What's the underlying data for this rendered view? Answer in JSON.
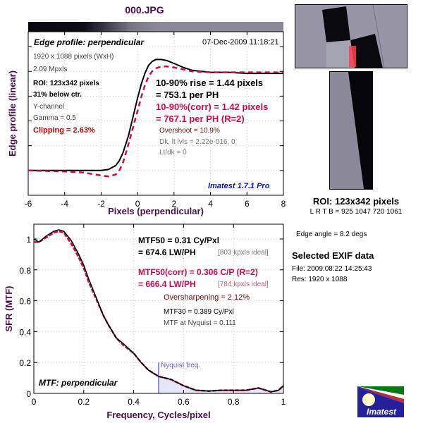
{
  "window_title": "000.JPG",
  "colors": {
    "title": "#4b0a50",
    "uncorrected": "#000000",
    "corrected": "#cc0a50",
    "clipping": "#c00000",
    "overshoot": "#6a0a0a",
    "watermark": "#0a14c8",
    "nyquist": "#8c8cdc",
    "nyquist_fill": "#e6e6fa"
  },
  "edge_panel": {
    "subtitle": "Edge profile: perpendicular",
    "timestamp": "07-Dec-2009 11:18:21",
    "info_lines": {
      "resolution": "1920 x 1088 pixels (WxH)",
      "mpxls": "2.09 Mpxls",
      "roi": "ROI: 123x342 pixels",
      "roi_pos": "31% below ctr.",
      "channel": "Y-channel",
      "gamma": "Gamma = 0.5",
      "clipping": "Clipping =   2.63%"
    },
    "results": {
      "rise": "10-90% rise = 1.44 pixels",
      "rise_ph": "= 753.1 per PH",
      "rise_corr": "10-90%(corr) = 1.42 pixels",
      "rise_corr_ph": "= 767.1 per PH  (R=2)",
      "overshoot": "Overshoot = 10.9%",
      "levels": "Dk, lt lvls = 2.22e-016, 0",
      "ltdk": "Lt/dk = 0"
    },
    "watermark": "Imatest 1.7.1 Pro"
  },
  "mtf_panel": {
    "subtitle": "MTF: perpendicular",
    "results": {
      "mtf50": "MTF50 = 0.31 Cy/Pxl",
      "mtf50_lw": "= 674.6 LW/PH",
      "mtf50_ideal": "[803 kpxls ideal]",
      "mtf50_corr": "MTF50(corr) = 0.306 C/P  (R=2)",
      "mtf50_corr_lw": "= 666.4 LW/PH",
      "mtf50_corr_ideal": "[784 kpxls ideal]",
      "oversharpening": "Oversharpening = 2.12%",
      "mtf30": "MTF30 = 0.389 Cy/Pxl",
      "nyquist_mtf": "MTF at Nyquist = 0.111"
    },
    "nyquist_label": "Nyquist freq."
  },
  "side_panel": {
    "roi_title": "ROI: 123x342 pixels",
    "roi_coords": "L R  T B = 925 1047  720 1061",
    "edge_angle": "Edge angle = 8.2 degs",
    "exif_title": "Selected EXIF data",
    "exif_file": "File:  2009:08:22 14:25:43",
    "exif_res": "Res:   1920 x 1088",
    "logo_text": "Imatest"
  },
  "chart_data": [
    {
      "type": "line",
      "title": "Edge profile: perpendicular",
      "xlabel": "Pixels (perpendicular)",
      "ylabel": "Edge profile (linear)",
      "xlim": [
        -6,
        8
      ],
      "x_ticks": [
        "-6",
        "-4",
        "-2",
        "0",
        "2",
        "4",
        "6",
        "8"
      ],
      "ylim": [
        -0.25,
        1.4
      ],
      "grid": true,
      "series": [
        {
          "name": "edge (uncorrected)",
          "style": "solid",
          "x": [
            -6,
            -4,
            -2,
            -1.6,
            -1.2,
            -1.0,
            -0.8,
            -0.5,
            -0.2,
            0,
            0.2,
            0.4,
            0.6,
            0.8,
            1.0,
            1.3,
            1.6,
            2.0,
            2.5,
            3.0,
            4.0,
            5.0,
            6.0,
            7.0,
            8.0
          ],
          "y": [
            0,
            0,
            0,
            0.01,
            0.05,
            0.1,
            0.18,
            0.35,
            0.58,
            0.73,
            0.87,
            0.98,
            1.06,
            1.1,
            1.12,
            1.12,
            1.11,
            1.08,
            1.04,
            1.01,
            0.99,
            0.99,
            0.98,
            0.98,
            0.98
          ]
        },
        {
          "name": "edge (corrected)",
          "style": "dashed",
          "x": [
            -6,
            -4,
            -3,
            -2,
            -1.6,
            -1.2,
            -1.0,
            -0.8,
            -0.6,
            -0.3,
            0,
            0.2,
            0.4,
            0.6,
            0.8,
            1.0,
            1.3,
            1.6,
            2.0,
            2.5,
            3.0,
            4.0,
            5.0,
            6.0,
            7.0,
            8.0
          ],
          "y": [
            0,
            -0.01,
            -0.02,
            -0.05,
            -0.06,
            -0.04,
            0.0,
            0.08,
            0.2,
            0.4,
            0.6,
            0.74,
            0.86,
            0.95,
            1.0,
            1.03,
            1.05,
            1.05,
            1.04,
            1.02,
            1.0,
            0.99,
            0.99,
            0.99,
            0.99,
            0.99
          ]
        }
      ]
    },
    {
      "type": "line",
      "title": "MTF: perpendicular",
      "xlabel": "Frequency, Cycles/pixel",
      "ylabel": "SFR (MTF)",
      "xlim": [
        0,
        1
      ],
      "ylim": [
        0,
        1.08
      ],
      "x_ticks": [
        "0",
        "0.2",
        "0.4",
        "0.6",
        "0.8",
        "1"
      ],
      "y_ticks": [
        "0",
        "0.2",
        "0.4",
        "0.6",
        "0.8",
        "1"
      ],
      "grid": true,
      "nyquist": 0.5,
      "series": [
        {
          "name": "MTF (uncorrected)",
          "style": "solid",
          "x": [
            0,
            0.02,
            0.05,
            0.08,
            0.1,
            0.12,
            0.15,
            0.18,
            0.2,
            0.22,
            0.25,
            0.28,
            0.3,
            0.33,
            0.36,
            0.4,
            0.43,
            0.46,
            0.5,
            0.55,
            0.6,
            0.65,
            0.7,
            0.75,
            0.8,
            0.85,
            0.9,
            0.95,
            0.98,
            1.0
          ],
          "y": [
            1.0,
            0.98,
            1.02,
            1.05,
            1.06,
            1.05,
            0.99,
            0.9,
            0.83,
            0.74,
            0.62,
            0.5,
            0.44,
            0.36,
            0.32,
            0.26,
            0.2,
            0.15,
            0.11,
            0.09,
            0.05,
            0.02,
            0.015,
            0.02,
            0.02,
            0.02,
            0.035,
            0.01,
            0.02,
            0.05
          ]
        },
        {
          "name": "MTF (corrected)",
          "style": "dashed",
          "x": [
            0,
            0.02,
            0.05,
            0.08,
            0.1,
            0.12,
            0.15,
            0.18,
            0.2,
            0.22,
            0.25,
            0.28,
            0.3,
            0.33,
            0.36,
            0.4,
            0.43,
            0.46,
            0.5,
            0.55,
            0.6,
            0.65,
            0.7,
            0.75,
            0.8,
            0.85,
            0.9,
            0.95,
            0.98,
            1.0
          ],
          "y": [
            0.98,
            0.98,
            1.01,
            1.04,
            1.05,
            1.04,
            0.97,
            0.88,
            0.81,
            0.72,
            0.61,
            0.5,
            0.44,
            0.36,
            0.31,
            0.26,
            0.2,
            0.15,
            0.11,
            0.09,
            0.05,
            0.02,
            0.015,
            0.02,
            0.02,
            0.02,
            0.035,
            0.01,
            0.02,
            0.05
          ]
        }
      ]
    }
  ]
}
